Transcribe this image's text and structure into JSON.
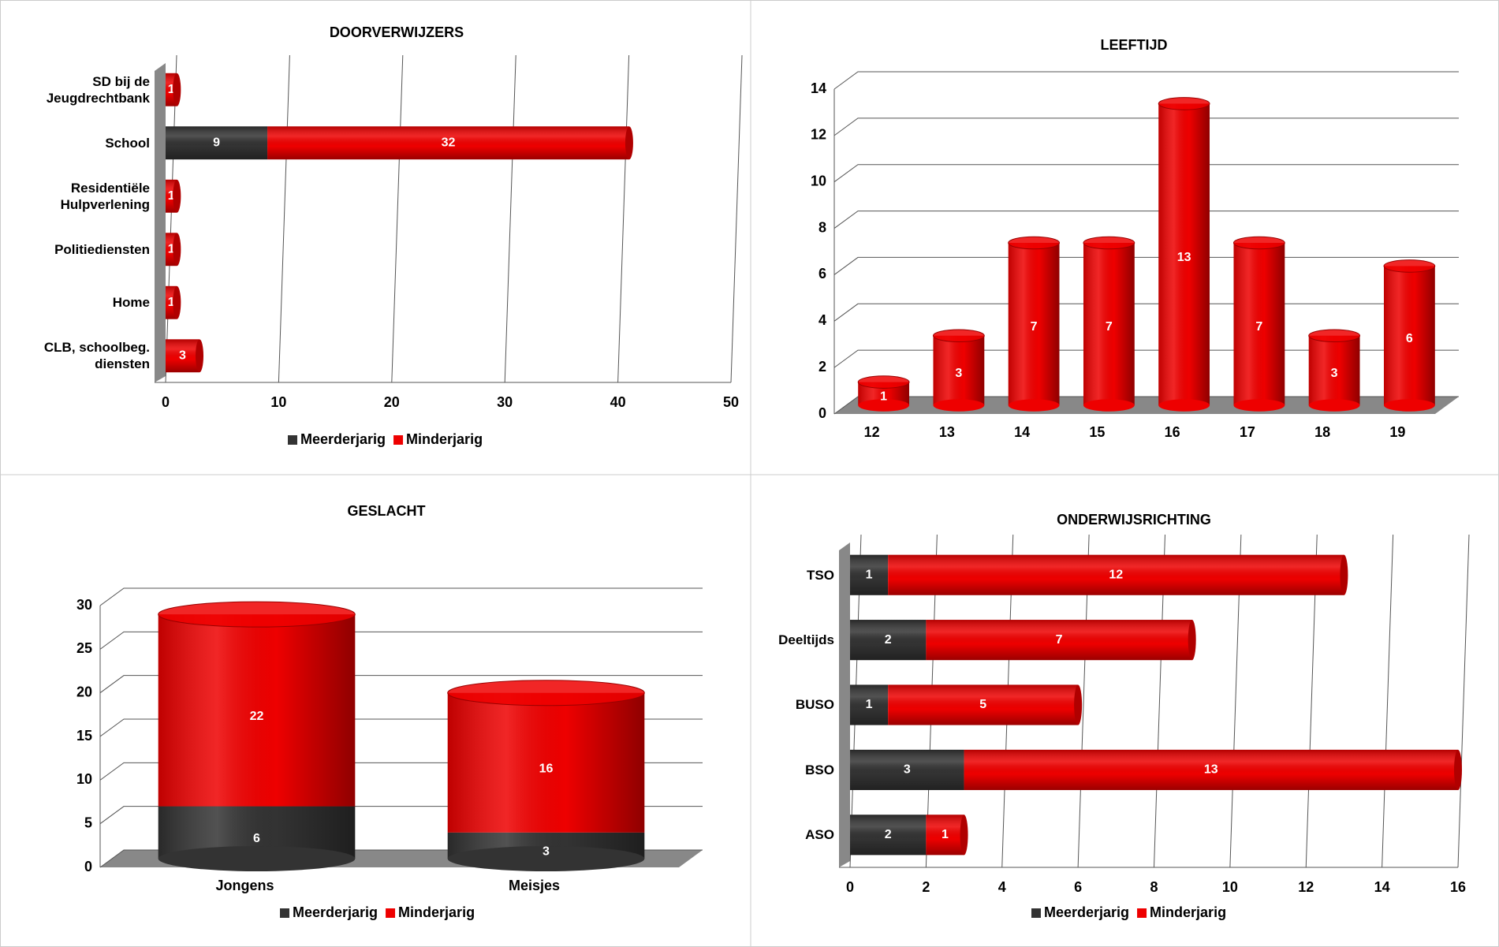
{
  "chart_data": [
    {
      "type": "bar",
      "horizontal": true,
      "stacked": true,
      "title": "DOORVERWIJZERS",
      "categories": [
        "SD bij de Jeugdrechtbank",
        "School",
        "Residentiële Hulpverlening",
        "Politiediensten",
        "Home",
        "CLB, schoolbeg. diensten"
      ],
      "series": [
        {
          "name": "Meerderjarig",
          "color": "#333333",
          "values": [
            0,
            9,
            0,
            0,
            0,
            0
          ]
        },
        {
          "name": "Minderjarig",
          "color": "#ee0000",
          "values": [
            1,
            32,
            1,
            1,
            1,
            3
          ]
        }
      ],
      "xlim": [
        0,
        50
      ],
      "xticks": [
        0,
        10,
        20,
        30,
        40,
        50
      ],
      "grid": true,
      "legend": "bottom"
    },
    {
      "type": "bar",
      "horizontal": false,
      "title": "LEEFTIJD",
      "categories": [
        "12",
        "13",
        "14",
        "15",
        "16",
        "17",
        "18",
        "19"
      ],
      "values": [
        1,
        3,
        7,
        7,
        13,
        7,
        3,
        6
      ],
      "color": "#ee0000",
      "ylim": [
        0,
        14
      ],
      "yticks": [
        0,
        2,
        4,
        6,
        8,
        10,
        12,
        14
      ],
      "grid": true
    },
    {
      "type": "bar",
      "horizontal": false,
      "stacked": true,
      "title": "GESLACHT",
      "categories": [
        "Jongens",
        "Meisjes"
      ],
      "series": [
        {
          "name": "Meerderjarig",
          "color": "#333333",
          "values": [
            6,
            3
          ]
        },
        {
          "name": "Minderjarig",
          "color": "#ee0000",
          "values": [
            22,
            16
          ]
        }
      ],
      "ylim": [
        0,
        30
      ],
      "yticks": [
        0,
        5,
        10,
        15,
        20,
        25,
        30
      ],
      "grid": true,
      "legend": "bottom"
    },
    {
      "type": "bar",
      "horizontal": true,
      "stacked": true,
      "title": "ONDERWIJSRICHTING",
      "categories": [
        "TSO",
        "Deeltijds",
        "BUSO",
        "BSO",
        "ASO"
      ],
      "series": [
        {
          "name": "Meerderjarig",
          "color": "#333333",
          "values": [
            1,
            2,
            1,
            3,
            2
          ]
        },
        {
          "name": "Minderjarig",
          "color": "#ee0000",
          "values": [
            12,
            7,
            5,
            13,
            1
          ]
        }
      ],
      "xlim": [
        0,
        16
      ],
      "xticks": [
        0,
        2,
        4,
        6,
        8,
        10,
        12,
        14,
        16
      ],
      "grid": true,
      "legend": "bottom"
    }
  ]
}
